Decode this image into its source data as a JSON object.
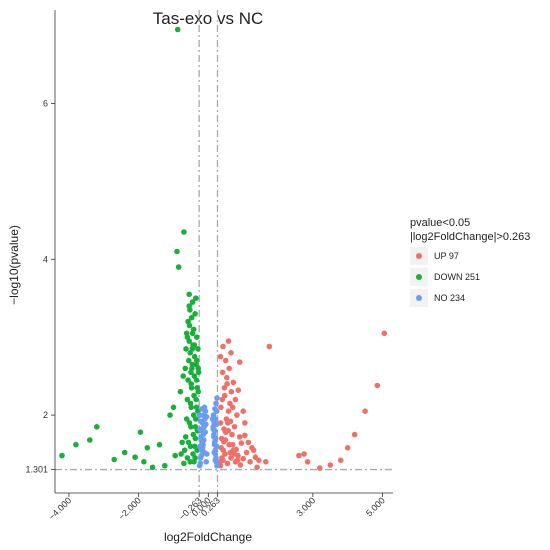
{
  "chart_data": {
    "type": "scatter",
    "title": "Tas-exo vs NC",
    "xlabel": "log2FoldChange",
    "ylabel": "−log10(pvalue)",
    "xlim": [
      -4.4,
      5.3
    ],
    "ylim": [
      1.0,
      7.2
    ],
    "x_ticks": [
      {
        "value": -4.0,
        "label": "−4.000"
      },
      {
        "value": -2.0,
        "label": "−2.000"
      },
      {
        "value": -0.263,
        "label": "−0.263"
      },
      {
        "value": 0.0,
        "label": "0.000"
      },
      {
        "value": 0.263,
        "label": "0.263"
      },
      {
        "value": 3.0,
        "label": "3.000"
      },
      {
        "value": 5.0,
        "label": "5.000"
      }
    ],
    "y_ticks": [
      {
        "value": 1.301,
        "label": "1.301"
      },
      {
        "value": 2,
        "label": "2"
      },
      {
        "value": 4,
        "label": "4"
      },
      {
        "value": 6,
        "label": "6"
      }
    ],
    "thresholds": {
      "x": [
        -0.263,
        0.263
      ],
      "y": 1.301
    },
    "grid": false,
    "legend": {
      "title_lines": [
        "pvalue<0.05",
        "|log2FoldChange|>0.263"
      ],
      "placement": "right",
      "entries": [
        {
          "label": "UP 97",
          "color": "#f07068"
        },
        {
          "label": "DOWN 251",
          "color": "#1aaf3a"
        },
        {
          "label": "NO 234",
          "color": "#6b9cf3"
        }
      ]
    },
    "series": [
      {
        "name": "UP 97",
        "color": "#f07068",
        "points": [
          [
            0.35,
            1.35
          ],
          [
            0.42,
            1.42
          ],
          [
            0.48,
            1.5
          ],
          [
            0.55,
            1.38
          ],
          [
            0.6,
            1.62
          ],
          [
            0.65,
            1.45
          ],
          [
            0.72,
            1.55
          ],
          [
            0.78,
            1.4
          ],
          [
            0.85,
            1.48
          ],
          [
            0.92,
            1.36
          ],
          [
            1.0,
            1.44
          ],
          [
            1.1,
            1.52
          ],
          [
            1.2,
            1.4
          ],
          [
            1.35,
            1.46
          ],
          [
            0.38,
            1.7
          ],
          [
            0.45,
            1.82
          ],
          [
            0.52,
            1.95
          ],
          [
            0.58,
            2.05
          ],
          [
            0.62,
            2.15
          ],
          [
            0.68,
            1.75
          ],
          [
            0.75,
            1.85
          ],
          [
            0.82,
            2.0
          ],
          [
            0.9,
            1.72
          ],
          [
            0.4,
            2.2
          ],
          [
            0.46,
            2.35
          ],
          [
            0.53,
            2.48
          ],
          [
            0.6,
            2.6
          ],
          [
            0.66,
            2.3
          ],
          [
            0.72,
            2.42
          ],
          [
            0.35,
            2.75
          ],
          [
            0.42,
            2.88
          ],
          [
            0.5,
            2.7
          ],
          [
            0.58,
            2.95
          ],
          [
            0.65,
            2.8
          ],
          [
            0.9,
            2.68
          ],
          [
            1.05,
            1.9
          ],
          [
            1.15,
            1.65
          ],
          [
            1.25,
            1.58
          ],
          [
            0.37,
            1.58
          ],
          [
            0.44,
            1.66
          ],
          [
            0.5,
            1.78
          ],
          [
            0.56,
            1.9
          ],
          [
            0.63,
            1.52
          ],
          [
            0.7,
            1.62
          ],
          [
            0.8,
            1.56
          ],
          [
            0.95,
            1.64
          ],
          [
            1.05,
            1.74
          ],
          [
            1.3,
            1.55
          ],
          [
            1.45,
            1.42
          ],
          [
            0.36,
            2.1
          ],
          [
            0.41,
            2.55
          ],
          [
            0.47,
            2.25
          ],
          [
            0.54,
            2.4
          ],
          [
            0.7,
            2.1
          ],
          [
            0.78,
            2.2
          ],
          [
            0.86,
            2.32
          ],
          [
            1.4,
            1.33
          ],
          [
            2.6,
            1.48
          ],
          [
            2.75,
            1.5
          ],
          [
            2.85,
            1.4
          ],
          [
            3.2,
            1.32
          ],
          [
            3.5,
            1.36
          ],
          [
            3.8,
            1.42
          ],
          [
            4.0,
            1.58
          ],
          [
            4.2,
            1.75
          ],
          [
            4.5,
            2.05
          ],
          [
            4.85,
            2.38
          ],
          [
            5.05,
            3.05
          ],
          [
            1.75,
            2.88
          ],
          [
            1.65,
            1.4
          ],
          [
            0.39,
            1.45
          ],
          [
            0.43,
            1.55
          ],
          [
            0.49,
            1.68
          ],
          [
            0.57,
            1.8
          ],
          [
            0.64,
            1.92
          ],
          [
            0.74,
            1.5
          ],
          [
            0.84,
            1.42
          ],
          [
            1.0,
            2.05
          ],
          [
            0.33,
            1.4
          ],
          [
            0.35,
            1.9
          ]
        ]
      },
      {
        "name": "DOWN 251",
        "color": "#1aaf3a",
        "points": [
          [
            -4.2,
            1.48
          ],
          [
            -3.8,
            1.62
          ],
          [
            -3.4,
            1.68
          ],
          [
            -3.2,
            1.85
          ],
          [
            -2.7,
            1.43
          ],
          [
            -2.4,
            1.52
          ],
          [
            -2.1,
            1.46
          ],
          [
            -1.95,
            1.78
          ],
          [
            -1.85,
            1.4
          ],
          [
            -1.75,
            1.58
          ],
          [
            -1.6,
            1.33
          ],
          [
            -1.4,
            1.62
          ],
          [
            -1.25,
            1.35
          ],
          [
            -1.1,
            2.0
          ],
          [
            -1.0,
            2.1
          ],
          [
            -0.95,
            1.48
          ],
          [
            -0.9,
            4.1
          ],
          [
            -0.85,
            3.9
          ],
          [
            -0.7,
            4.35
          ],
          [
            -0.68,
            1.55
          ],
          [
            -0.65,
            1.72
          ],
          [
            -0.62,
            1.95
          ],
          [
            -0.6,
            2.2
          ],
          [
            -0.58,
            2.45
          ],
          [
            -0.56,
            2.7
          ],
          [
            -0.55,
            2.95
          ],
          [
            -0.54,
            3.15
          ],
          [
            -0.53,
            3.35
          ],
          [
            -0.52,
            1.4
          ],
          [
            -0.51,
            1.6
          ],
          [
            -0.5,
            1.85
          ],
          [
            -0.49,
            2.1
          ],
          [
            -0.48,
            2.35
          ],
          [
            -0.47,
            2.6
          ],
          [
            -0.46,
            2.85
          ],
          [
            -0.45,
            3.05
          ],
          [
            -0.44,
            1.5
          ],
          [
            -0.43,
            1.75
          ],
          [
            -0.42,
            2.0
          ],
          [
            -0.41,
            2.25
          ],
          [
            -0.4,
            2.5
          ],
          [
            -0.39,
            2.75
          ],
          [
            -0.38,
            1.45
          ],
          [
            -0.37,
            1.7
          ],
          [
            -0.36,
            1.95
          ],
          [
            -0.35,
            2.2
          ],
          [
            -0.34,
            2.45
          ],
          [
            -0.33,
            2.7
          ],
          [
            -0.32,
            1.55
          ],
          [
            -0.31,
            1.8
          ],
          [
            -0.3,
            2.05
          ],
          [
            -0.29,
            2.3
          ],
          [
            -0.28,
            2.55
          ],
          [
            -0.6,
            3.0
          ],
          [
            -0.58,
            3.2
          ],
          [
            -0.55,
            3.4
          ],
          [
            -0.52,
            2.8
          ],
          [
            -0.5,
            2.55
          ],
          [
            -0.48,
            3.25
          ],
          [
            -0.45,
            3.45
          ],
          [
            -0.42,
            3.1
          ],
          [
            -0.4,
            2.9
          ],
          [
            -0.38,
            3.3
          ],
          [
            -0.36,
            3.5
          ],
          [
            -0.35,
            2.65
          ],
          [
            -0.33,
            3.0
          ],
          [
            -0.3,
            2.85
          ],
          [
            -0.72,
            2.5
          ],
          [
            -0.75,
            1.65
          ],
          [
            -0.8,
            2.3
          ],
          [
            -0.66,
            2.6
          ],
          [
            -0.64,
            2.85
          ],
          [
            -0.62,
            3.05
          ],
          [
            -0.6,
            1.45
          ],
          [
            -0.57,
            1.65
          ],
          [
            -0.54,
            1.9
          ],
          [
            -0.51,
            2.15
          ],
          [
            -0.49,
            2.4
          ],
          [
            -0.46,
            2.65
          ],
          [
            -0.44,
            2.9
          ],
          [
            -0.41,
            1.4
          ],
          [
            -0.39,
            1.6
          ],
          [
            -0.37,
            1.85
          ],
          [
            -0.34,
            2.1
          ],
          [
            -0.32,
            2.35
          ],
          [
            -0.29,
            2.6
          ],
          [
            -0.88,
            6.95
          ],
          [
            -0.55,
            3.55
          ],
          [
            -0.7,
            1.38
          ],
          [
            -0.78,
            1.5
          ]
        ]
      },
      {
        "name": "NO 234",
        "color": "#6b9cf3",
        "points": [
          [
            -0.25,
            1.35
          ],
          [
            -0.22,
            1.45
          ],
          [
            -0.2,
            1.55
          ],
          [
            -0.18,
            1.65
          ],
          [
            -0.15,
            1.75
          ],
          [
            -0.12,
            1.85
          ],
          [
            -0.1,
            1.95
          ],
          [
            -0.08,
            2.05
          ],
          [
            -0.06,
            1.4
          ],
          [
            -0.04,
            1.5
          ],
          [
            -0.24,
            1.6
          ],
          [
            -0.21,
            1.7
          ],
          [
            -0.19,
            1.8
          ],
          [
            -0.17,
            1.9
          ],
          [
            -0.14,
            2.0
          ],
          [
            -0.11,
            2.1
          ],
          [
            -0.23,
            1.38
          ],
          [
            -0.2,
            1.48
          ],
          [
            -0.16,
            1.58
          ],
          [
            -0.13,
            1.68
          ],
          [
            -0.09,
            1.78
          ],
          [
            -0.07,
            1.88
          ],
          [
            -0.05,
            1.98
          ],
          [
            -0.25,
            2.0
          ],
          [
            -0.22,
            1.92
          ],
          [
            -0.18,
            2.08
          ],
          [
            -0.24,
            1.82
          ],
          [
            -0.21,
            1.72
          ],
          [
            -0.15,
            1.62
          ],
          [
            -0.12,
            1.52
          ],
          [
            0.25,
            1.35
          ],
          [
            0.22,
            1.45
          ],
          [
            0.2,
            1.55
          ],
          [
            0.18,
            1.65
          ],
          [
            0.16,
            1.75
          ],
          [
            0.14,
            1.85
          ],
          [
            0.12,
            1.95
          ],
          [
            0.24,
            1.6
          ],
          [
            0.21,
            1.7
          ],
          [
            0.19,
            1.8
          ],
          [
            0.17,
            1.9
          ],
          [
            0.15,
            2.0
          ],
          [
            0.23,
            1.4
          ],
          [
            0.2,
            1.5
          ],
          [
            0.18,
            1.62
          ],
          [
            0.16,
            1.72
          ],
          [
            0.14,
            1.82
          ],
          [
            0.24,
            2.05
          ],
          [
            0.22,
            2.15
          ],
          [
            0.25,
            2.22
          ],
          [
            0.21,
            1.95
          ],
          [
            0.19,
            2.08
          ],
          [
            0.23,
            1.88
          ],
          [
            0.2,
            1.42
          ],
          [
            0.17,
            1.52
          ]
        ]
      }
    ]
  }
}
